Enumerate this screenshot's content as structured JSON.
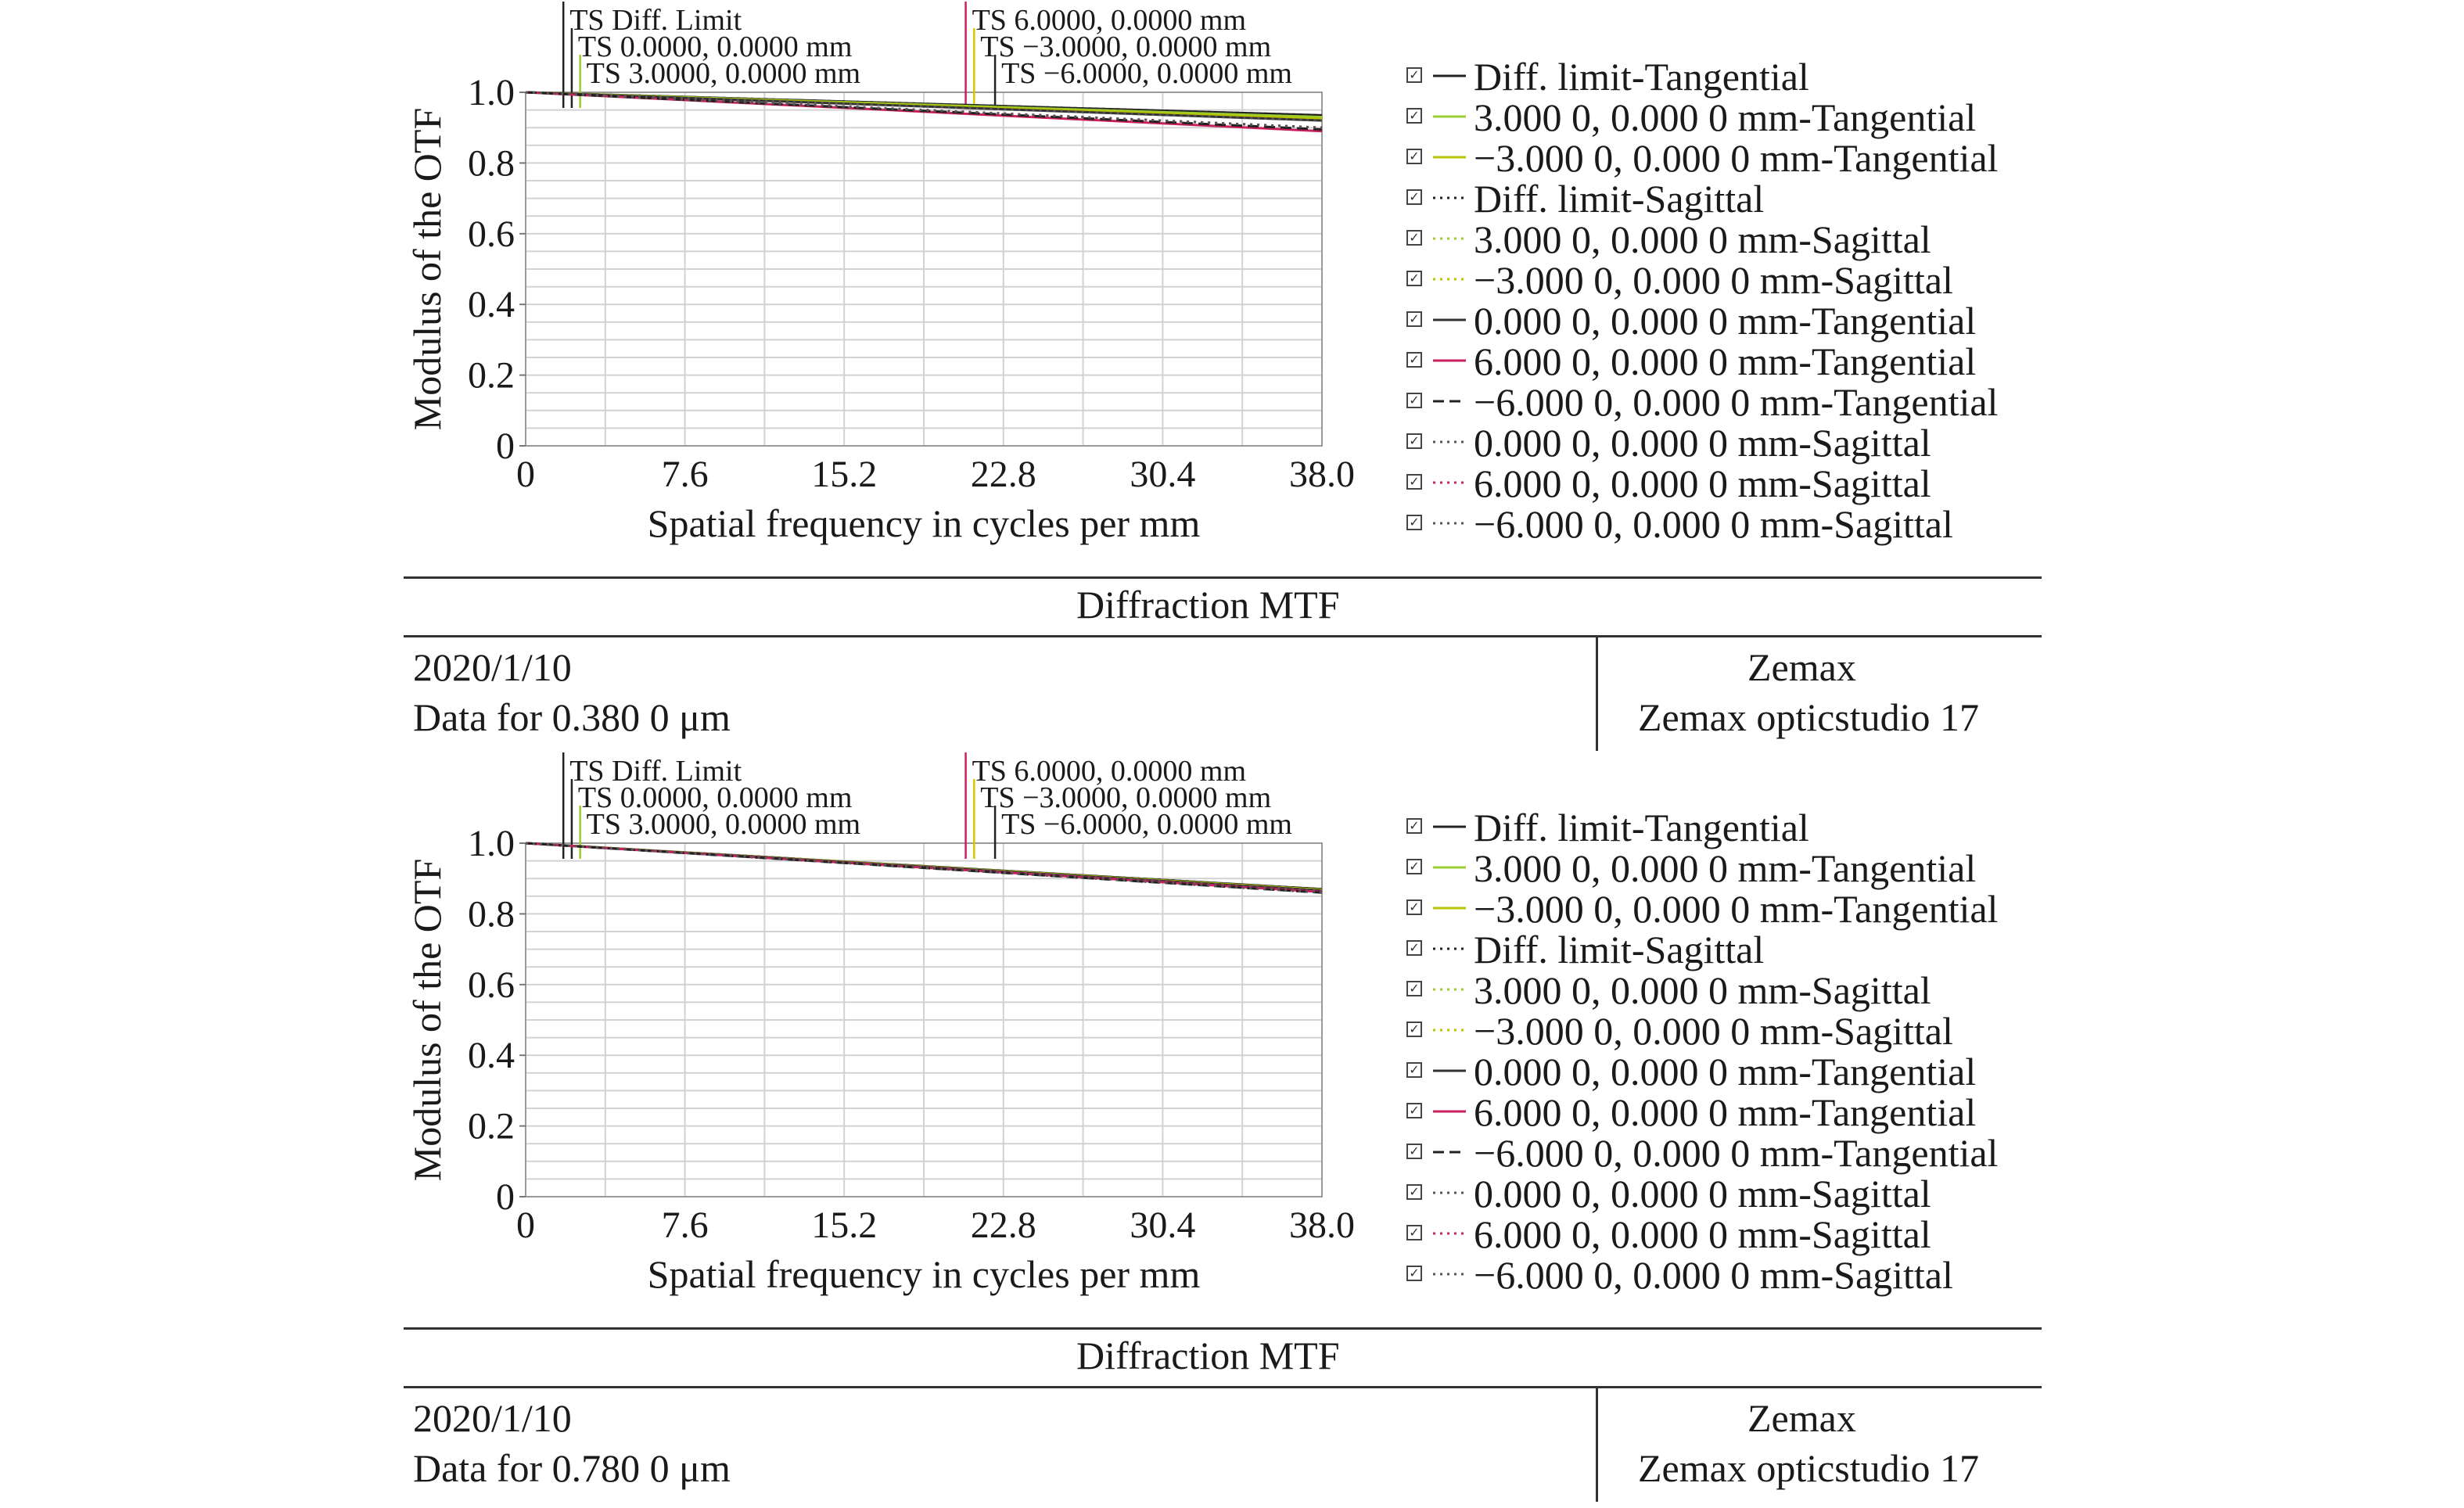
{
  "panels": [
    {
      "footer": {
        "title": "Diffraction MTF",
        "date": "2020/1/10",
        "data_for": "Data for 0.380 0 μm",
        "vendor": "Zemax",
        "product": "Zemax opticstudio 17"
      }
    },
    {
      "footer": {
        "title": "Diffraction MTF",
        "date": "2020/1/10",
        "data_for": "Data for 0.780 0 μm",
        "vendor": "Zemax",
        "product": "Zemax opticstudio 17"
      }
    }
  ],
  "legend_entries": [
    {
      "label": "Diff. limit-Tangential",
      "color": "#222222",
      "style": "solid"
    },
    {
      "label": "3.000 0, 0.000 0 mm-Tangential",
      "color": "#9acd32",
      "style": "solid"
    },
    {
      "label": "−3.000 0, 0.000 0 mm-Tangential",
      "color": "#b8c400",
      "style": "solid"
    },
    {
      "label": "Diff. limit-Sagittal",
      "color": "#222222",
      "style": "dotted"
    },
    {
      "label": "3.000 0, 0.000 0 mm-Sagittal",
      "color": "#9acd32",
      "style": "dotted"
    },
    {
      "label": "−3.000 0, 0.000 0 mm-Sagittal",
      "color": "#b8c400",
      "style": "dotted"
    },
    {
      "label": "0.000 0, 0.000 0 mm-Tangential",
      "color": "#333333",
      "style": "solid"
    },
    {
      "label": "6.000 0, 0.000 0 mm-Tangential",
      "color": "#cc1f5f",
      "style": "solid"
    },
    {
      "label": "−6.000 0, 0.000 0 mm-Tangential",
      "color": "#222222",
      "style": "dashed"
    },
    {
      "label": "0.000 0, 0.000 0 mm-Sagittal",
      "color": "#555555",
      "style": "dotted"
    },
    {
      "label": "6.000 0, 0.000 0 mm-Sagittal",
      "color": "#cc1f5f",
      "style": "dotted"
    },
    {
      "label": "−6.000 0, 0.000 0 mm-Sagittal",
      "color": "#555555",
      "style": "dotted"
    }
  ],
  "chart_data": [
    {
      "type": "line",
      "title": "",
      "xlabel": "Spatial frequency in cycles per mm",
      "ylabel": "Modulus of the OTF",
      "xlim": [
        0,
        38
      ],
      "ylim": [
        0,
        1.0
      ],
      "x_ticks": [
        "0",
        "7.6",
        "15.2",
        "22.8",
        "30.4",
        "38.0"
      ],
      "y_ticks": [
        "0",
        "0.2",
        "0.4",
        "0.6",
        "0.8",
        "1.0"
      ],
      "x_tick_values": [
        0,
        7.6,
        15.2,
        22.8,
        30.4,
        38.0
      ],
      "y_tick_values": [
        0,
        0.2,
        0.4,
        0.6,
        0.8,
        1.0
      ],
      "grid": true,
      "field_labels": [
        {
          "text": "TS Diff. Limit",
          "color": "#222222",
          "x": 1.8
        },
        {
          "text": "TS 0.0000, 0.0000 mm",
          "color": "#222222",
          "x": 2.2
        },
        {
          "text": "TS 3.0000, 0.0000 mm",
          "color": "#9acd32",
          "x": 2.6
        },
        {
          "text": "TS 6.0000, 0.0000 mm",
          "color": "#cc1f5f",
          "x": 21.0
        },
        {
          "text": "TS −3.0000, 0.0000 mm",
          "color": "#d4c800",
          "x": 21.4
        },
        {
          "text": "TS −6.0000, 0.0000 mm",
          "color": "#222222",
          "x": 22.4
        }
      ],
      "series": [
        {
          "name": "Diff. limit-Tangential",
          "color": "#222222",
          "style": "solid",
          "x": [
            0,
            38
          ],
          "y": [
            1.0,
            0.935
          ]
        },
        {
          "name": "3.000 0, 0.000 0 mm-Tangential",
          "color": "#9acd32",
          "style": "solid",
          "x": [
            0,
            38
          ],
          "y": [
            1.0,
            0.93
          ]
        },
        {
          "name": "−3.000 0, 0.000 0 mm-Tangential",
          "color": "#b8c400",
          "style": "solid",
          "x": [
            0,
            38
          ],
          "y": [
            1.0,
            0.925
          ]
        },
        {
          "name": "Diff. limit-Sagittal",
          "color": "#222222",
          "style": "dotted",
          "x": [
            0,
            38
          ],
          "y": [
            1.0,
            0.935
          ]
        },
        {
          "name": "3.000 0, 0.000 0 mm-Sagittal",
          "color": "#9acd32",
          "style": "dotted",
          "x": [
            0,
            38
          ],
          "y": [
            1.0,
            0.93
          ]
        },
        {
          "name": "−3.000 0, 0.000 0 mm-Sagittal",
          "color": "#b8c400",
          "style": "dotted",
          "x": [
            0,
            38
          ],
          "y": [
            1.0,
            0.925
          ]
        },
        {
          "name": "0.000 0, 0.000 0 mm-Tangential",
          "color": "#333333",
          "style": "solid",
          "x": [
            0,
            38
          ],
          "y": [
            1.0,
            0.92
          ]
        },
        {
          "name": "6.000 0, 0.000 0 mm-Tangential",
          "color": "#cc1f5f",
          "style": "solid",
          "x": [
            0,
            38
          ],
          "y": [
            1.0,
            0.89
          ]
        },
        {
          "name": "−6.000 0, 0.000 0 mm-Tangential",
          "color": "#222222",
          "style": "dashed",
          "x": [
            0,
            38
          ],
          "y": [
            1.0,
            0.895
          ]
        },
        {
          "name": "0.000 0, 0.000 0 mm-Sagittal",
          "color": "#555555",
          "style": "dotted",
          "x": [
            0,
            38
          ],
          "y": [
            1.0,
            0.92
          ]
        },
        {
          "name": "6.000 0, 0.000 0 mm-Sagittal",
          "color": "#cc1f5f",
          "style": "dotted",
          "x": [
            0,
            38
          ],
          "y": [
            1.0,
            0.9
          ]
        },
        {
          "name": "−6.000 0, 0.000 0 mm-Sagittal",
          "color": "#555555",
          "style": "dotted",
          "x": [
            0,
            38
          ],
          "y": [
            1.0,
            0.9
          ]
        }
      ]
    },
    {
      "type": "line",
      "title": "",
      "xlabel": "Spatial frequency in cycles per mm",
      "ylabel": "Modulus of the OTF",
      "xlim": [
        0,
        38
      ],
      "ylim": [
        0,
        1.0
      ],
      "x_ticks": [
        "0",
        "7.6",
        "15.2",
        "22.8",
        "30.4",
        "38.0"
      ],
      "y_ticks": [
        "0",
        "0.2",
        "0.4",
        "0.6",
        "0.8",
        "1.0"
      ],
      "x_tick_values": [
        0,
        7.6,
        15.2,
        22.8,
        30.4,
        38.0
      ],
      "y_tick_values": [
        0,
        0.2,
        0.4,
        0.6,
        0.8,
        1.0
      ],
      "grid": true,
      "field_labels": [
        {
          "text": "TS Diff. Limit",
          "color": "#222222",
          "x": 1.8
        },
        {
          "text": "TS 0.0000, 0.0000 mm",
          "color": "#222222",
          "x": 2.2
        },
        {
          "text": "TS 3.0000, 0.0000 mm",
          "color": "#9acd32",
          "x": 2.6
        },
        {
          "text": "TS 6.0000, 0.0000 mm",
          "color": "#cc1f5f",
          "x": 21.0
        },
        {
          "text": "TS −3.0000, 0.0000 mm",
          "color": "#d4c800",
          "x": 21.4
        },
        {
          "text": "TS −6.0000, 0.0000 mm",
          "color": "#222222",
          "x": 22.4
        }
      ],
      "series": [
        {
          "name": "Diff. limit-Tangential",
          "color": "#222222",
          "style": "solid",
          "x": [
            0,
            38
          ],
          "y": [
            1.0,
            0.87
          ]
        },
        {
          "name": "3.000 0, 0.000 0 mm-Tangential",
          "color": "#9acd32",
          "style": "solid",
          "x": [
            0,
            38
          ],
          "y": [
            1.0,
            0.868
          ]
        },
        {
          "name": "−3.000 0, 0.000 0 mm-Tangential",
          "color": "#b8c400",
          "style": "solid",
          "x": [
            0,
            38
          ],
          "y": [
            1.0,
            0.868
          ]
        },
        {
          "name": "Diff. limit-Sagittal",
          "color": "#222222",
          "style": "dotted",
          "x": [
            0,
            38
          ],
          "y": [
            1.0,
            0.87
          ]
        },
        {
          "name": "3.000 0, 0.000 0 mm-Sagittal",
          "color": "#9acd32",
          "style": "dotted",
          "x": [
            0,
            38
          ],
          "y": [
            1.0,
            0.868
          ]
        },
        {
          "name": "−3.000 0, 0.000 0 mm-Sagittal",
          "color": "#b8c400",
          "style": "dotted",
          "x": [
            0,
            38
          ],
          "y": [
            1.0,
            0.868
          ]
        },
        {
          "name": "0.000 0, 0.000 0 mm-Tangential",
          "color": "#333333",
          "style": "solid",
          "x": [
            0,
            38
          ],
          "y": [
            1.0,
            0.866
          ]
        },
        {
          "name": "6.000 0, 0.000 0 mm-Tangential",
          "color": "#cc1f5f",
          "style": "solid",
          "x": [
            0,
            38
          ],
          "y": [
            1.0,
            0.862
          ]
        },
        {
          "name": "−6.000 0, 0.000 0 mm-Tangential",
          "color": "#222222",
          "style": "dashed",
          "x": [
            0,
            38
          ],
          "y": [
            1.0,
            0.86
          ]
        },
        {
          "name": "0.000 0, 0.000 0 mm-Sagittal",
          "color": "#555555",
          "style": "dotted",
          "x": [
            0,
            38
          ],
          "y": [
            1.0,
            0.866
          ]
        },
        {
          "name": "6.000 0, 0.000 0 mm-Sagittal",
          "color": "#cc1f5f",
          "style": "dotted",
          "x": [
            0,
            38
          ],
          "y": [
            1.0,
            0.862
          ]
        },
        {
          "name": "−6.000 0, 0.000 0 mm-Sagittal",
          "color": "#555555",
          "style": "dotted",
          "x": [
            0,
            38
          ],
          "y": [
            1.0,
            0.86
          ]
        }
      ]
    }
  ]
}
